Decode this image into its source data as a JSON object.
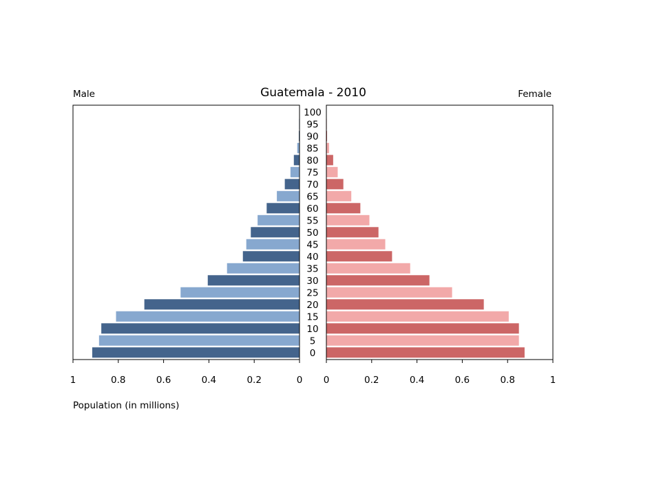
{
  "chart_data": {
    "type": "bar",
    "title": "Guatemala - 2010",
    "left_label": "Male",
    "right_label": "Female",
    "xlabel": "Population (in millions)",
    "xlim": [
      0,
      1
    ],
    "x_ticks_left": [
      "1",
      "0.8",
      "0.6",
      "0.4",
      "0.2",
      "0"
    ],
    "x_ticks_right": [
      "0",
      "0.2",
      "0.4",
      "0.6",
      "0.8",
      "1"
    ],
    "categories": [
      "0",
      "5",
      "10",
      "15",
      "20",
      "25",
      "30",
      "35",
      "40",
      "45",
      "50",
      "55",
      "60",
      "65",
      "70",
      "75",
      "80",
      "85",
      "90",
      "95",
      "100"
    ],
    "series": [
      {
        "name": "Male",
        "side": "left",
        "colors": [
          "#44648c",
          "#87a8cf"
        ],
        "values": [
          0.915,
          0.885,
          0.875,
          0.81,
          0.685,
          0.525,
          0.405,
          0.32,
          0.25,
          0.235,
          0.215,
          0.185,
          0.145,
          0.1,
          0.065,
          0.04,
          0.025,
          0.01,
          0.003,
          0.002,
          0.001
        ]
      },
      {
        "name": "Female",
        "side": "right",
        "colors": [
          "#cc6666",
          "#f2a9a9"
        ],
        "values": [
          0.875,
          0.85,
          0.85,
          0.805,
          0.695,
          0.555,
          0.455,
          0.37,
          0.29,
          0.26,
          0.23,
          0.19,
          0.15,
          0.11,
          0.075,
          0.05,
          0.03,
          0.012,
          0.003,
          0.002,
          0.001
        ]
      }
    ]
  }
}
